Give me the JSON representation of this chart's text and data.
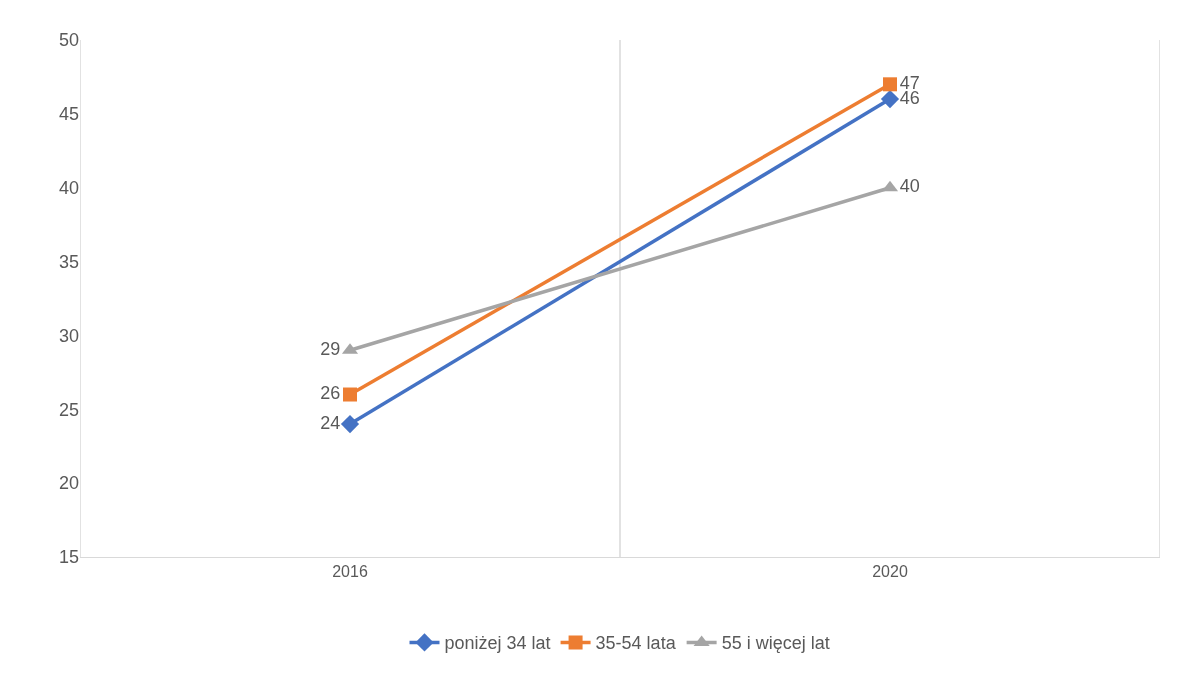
{
  "chart_data": {
    "type": "line",
    "categories": [
      "2016",
      "2020"
    ],
    "series": [
      {
        "name": "poniżej 34 lat",
        "color": "#4472c4",
        "values": [
          24,
          46
        ],
        "marker": "diamond"
      },
      {
        "name": "35-54 lata",
        "color": "#ed7d31",
        "values": [
          26,
          47
        ],
        "marker": "square"
      },
      {
        "name": "55 i więcej lat",
        "color": "#a5a5a5",
        "values": [
          29,
          40
        ],
        "marker": "triangle"
      }
    ],
    "ylim": [
      15,
      50
    ],
    "yticks": [
      15,
      20,
      25,
      30,
      35,
      40,
      45,
      50
    ],
    "grid": "x",
    "legend": "bottom",
    "data_labels": true,
    "line_style": "solid"
  }
}
